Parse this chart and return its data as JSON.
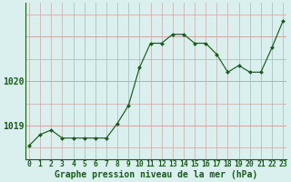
{
  "x": [
    0,
    1,
    2,
    3,
    4,
    5,
    6,
    7,
    8,
    9,
    10,
    11,
    12,
    13,
    14,
    15,
    16,
    17,
    18,
    19,
    20,
    21,
    22,
    23
  ],
  "y": [
    1018.55,
    1018.8,
    1018.9,
    1018.72,
    1018.72,
    1018.72,
    1018.72,
    1018.72,
    1019.05,
    1019.45,
    1020.3,
    1020.85,
    1020.85,
    1021.05,
    1021.05,
    1020.85,
    1020.85,
    1020.6,
    1020.2,
    1020.35,
    1020.2,
    1020.2,
    1020.75,
    1021.35
  ],
  "line_color": "#1a5c1a",
  "marker_color": "#1a5c1a",
  "bg_color": "#d9f0ef",
  "grid_color": "#c8a8a8",
  "xlabel": "Graphe pression niveau de la mer (hPa)",
  "ytick_labels": [
    "1019",
    "1020"
  ],
  "ytick_vals": [
    1019.0,
    1020.0
  ],
  "ylim": [
    1018.25,
    1021.75
  ],
  "xlim": [
    -0.3,
    23.3
  ],
  "xlabel_color": "#1a5c1a",
  "tick_color": "#1a5c1a",
  "tick_fontsize": 5.8,
  "xlabel_fontsize": 7.0,
  "ylabel_fontsize": 7.0,
  "linewidth": 0.85,
  "markersize": 2.0
}
